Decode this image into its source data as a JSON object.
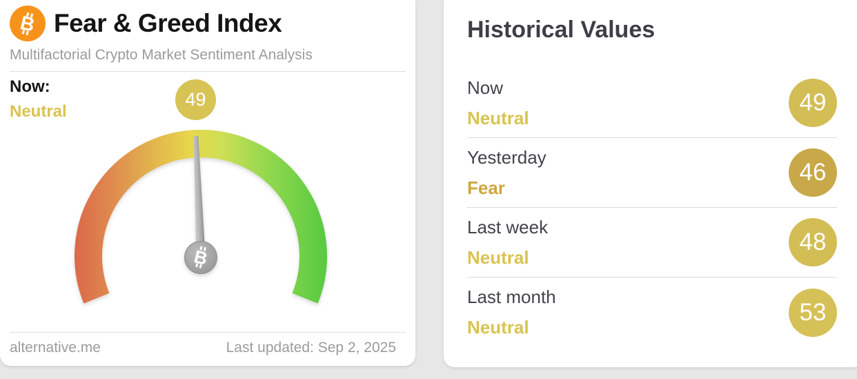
{
  "page": {
    "background_color": "#e7e7e7"
  },
  "gauge_card": {
    "title": "Fear & Greed Index",
    "subtitle": "Multifactorial Crypto Market Sentiment Analysis",
    "now_label": "Now:",
    "now_classification": "Neutral",
    "now_classification_color": "#d9c44f",
    "badge_value": "49",
    "badge_color": "#d8c355",
    "footer_site": "alternative.me",
    "footer_updated": "Last updated: Sep 2, 2025"
  },
  "chart_data": {
    "type": "gauge",
    "title": "Fear & Greed Index",
    "value": 49,
    "classification": "Neutral",
    "range": [
      0,
      100
    ],
    "start_angle_deg": -112,
    "sweep_deg": 224,
    "scale_colors": [
      "#db694a",
      "#df884f",
      "#e7d74b",
      "#96d94f",
      "#57ca41"
    ],
    "needle_color": "#a5a5a5",
    "last_updated": "Sep 2, 2025",
    "historical": [
      {
        "period": "Now",
        "value": 49,
        "classification": "Neutral"
      },
      {
        "period": "Yesterday",
        "value": 46,
        "classification": "Fear"
      },
      {
        "period": "Last week",
        "value": 48,
        "classification": "Neutral"
      },
      {
        "period": "Last month",
        "value": 53,
        "classification": "Neutral"
      }
    ]
  },
  "historical_card": {
    "title": "Historical Values",
    "rows": [
      {
        "period": "Now",
        "classification": "Neutral",
        "classification_color": "#d9c44f",
        "value": "49",
        "badge_color": "#d3bd55"
      },
      {
        "period": "Yesterday",
        "classification": "Fear",
        "classification_color": "#cfa63e",
        "value": "46",
        "badge_color": "#c8a848"
      },
      {
        "period": "Last week",
        "classification": "Neutral",
        "classification_color": "#d9c44f",
        "value": "48",
        "badge_color": "#d3bd55"
      },
      {
        "period": "Last month",
        "classification": "Neutral",
        "classification_color": "#d9c44f",
        "value": "53",
        "badge_color": "#d5c157"
      }
    ]
  }
}
